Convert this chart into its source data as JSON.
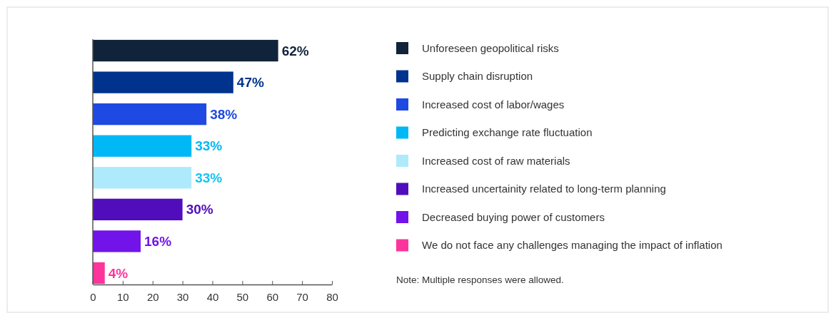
{
  "chart_data": {
    "type": "bar",
    "orientation": "horizontal",
    "categories": [
      null,
      null,
      null,
      null,
      null,
      null,
      null,
      null
    ],
    "series": [
      {
        "name": "Unforeseen geopolitical risks",
        "color": "#10233a",
        "values": [
          62,
          null,
          null,
          null,
          null,
          null,
          null,
          null
        ],
        "value_labels": [
          "62%",
          null,
          null,
          null,
          null,
          null,
          null,
          null
        ]
      },
      {
        "name": "Supply chain disruption",
        "color": "#00338d",
        "values": [
          null,
          47,
          null,
          null,
          null,
          null,
          null,
          null
        ],
        "value_labels": [
          null,
          "47%",
          null,
          null,
          null,
          null,
          null,
          null
        ]
      },
      {
        "name": "Increased cost of labor/wages",
        "color": "#1e49e2",
        "values": [
          null,
          null,
          38,
          null,
          null,
          null,
          null,
          null
        ],
        "value_labels": [
          null,
          null,
          "38%",
          null,
          null,
          null,
          null,
          null
        ]
      },
      {
        "name": "Predicting exchange rate fluctuation",
        "color": "#00b8f5",
        "values": [
          null,
          null,
          null,
          33,
          null,
          null,
          null,
          null
        ],
        "value_labels": [
          null,
          null,
          null,
          "33%",
          null,
          null,
          null,
          null
        ]
      },
      {
        "name": "Increased cost of raw materials",
        "color": "#aeeafb",
        "values": [
          null,
          null,
          null,
          null,
          33,
          null,
          null,
          null
        ],
        "value_labels": [
          null,
          null,
          null,
          null,
          "33%",
          null,
          null,
          null
        ]
      },
      {
        "name": "Increased uncertainity related to long-term planning",
        "color": "#510dbc",
        "values": [
          null,
          null,
          null,
          null,
          null,
          30,
          null,
          null
        ],
        "value_labels": [
          null,
          null,
          null,
          null,
          null,
          "30%",
          null,
          null
        ]
      },
      {
        "name": "Decreased buying power of customers",
        "color": "#7213ea",
        "values": [
          null,
          null,
          null,
          null,
          null,
          null,
          16,
          null
        ],
        "value_labels": [
          null,
          null,
          null,
          null,
          null,
          null,
          "16%",
          null
        ]
      },
      {
        "name": "We do not face any challenges managing the impact of inflation",
        "color": "#fd349c",
        "values": [
          null,
          null,
          null,
          null,
          null,
          null,
          null,
          4
        ],
        "value_labels": [
          null,
          null,
          null,
          null,
          null,
          null,
          null,
          "4%"
        ]
      }
    ],
    "xlim": [
      0,
      80
    ],
    "xticks": [
      0,
      10,
      20,
      30,
      40,
      50,
      60,
      70,
      80
    ],
    "legend": "right",
    "grid": false,
    "annotations": [
      "Note: Multiple responses were allowed."
    ]
  }
}
